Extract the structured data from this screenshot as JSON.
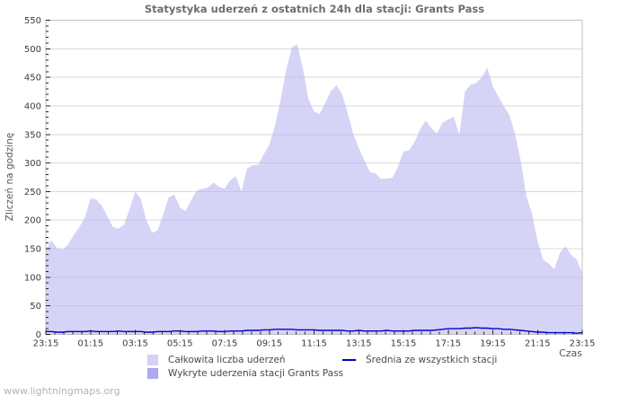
{
  "page": {
    "title": "Statystyka uderzeń z ostatnich 24h dla stacji: Grants Pass",
    "watermark": "www.lightningmaps.org"
  },
  "chart_data": {
    "type": "area",
    "title": "Statystyka uderzeń z ostatnich 24h dla stacji: Grants Pass",
    "xlabel": "Czas",
    "ylabel": "Zliczeń na godzinę",
    "xlim": [
      0,
      24
    ],
    "ylim": [
      0,
      550
    ],
    "grid": "horizontal-only",
    "legend_position": "bottom",
    "x_axis_note": "24 hours, from 23:15 through next-day 23:15, labels every 2 hours",
    "x_tick_labels": [
      "23:15",
      "01:15",
      "03:15",
      "05:15",
      "07:15",
      "09:15",
      "11:15",
      "13:15",
      "15:15",
      "17:15",
      "19:15",
      "21:15",
      "23:15"
    ],
    "y_ticks": [
      0,
      50,
      100,
      150,
      200,
      250,
      300,
      350,
      400,
      450,
      500,
      550
    ],
    "x_hours": [
      0,
      0.25,
      0.5,
      0.75,
      1,
      1.25,
      1.5,
      1.75,
      2,
      2.25,
      2.5,
      2.75,
      3,
      3.25,
      3.5,
      3.75,
      4,
      4.25,
      4.5,
      4.75,
      5,
      5.25,
      5.5,
      5.75,
      6,
      6.25,
      6.5,
      6.75,
      7,
      7.25,
      7.5,
      7.75,
      8,
      8.25,
      8.5,
      8.75,
      9,
      9.25,
      9.5,
      9.75,
      10,
      10.25,
      10.5,
      10.75,
      11,
      11.25,
      11.5,
      11.75,
      12,
      12.25,
      12.5,
      12.75,
      13,
      13.25,
      13.5,
      13.75,
      14,
      14.25,
      14.5,
      14.75,
      15,
      15.25,
      15.5,
      15.75,
      16,
      16.25,
      16.5,
      16.75,
      17,
      17.25,
      17.5,
      17.75,
      18,
      18.25,
      18.5,
      18.75,
      19,
      19.25,
      19.5,
      19.75,
      20,
      20.25,
      20.5,
      20.75,
      21,
      21.25,
      21.5,
      21.75,
      22,
      22.25,
      22.5,
      22.75,
      23,
      23.25,
      23.5,
      23.75,
      24
    ],
    "series": [
      {
        "name": "Całkowita liczba uderzeń",
        "type": "area",
        "color": "#bcb9f0",
        "values": [
          149,
          165,
          151,
          148,
          158,
          174,
          188,
          205,
          238,
          236,
          226,
          207,
          188,
          185,
          192,
          220,
          250,
          237,
          200,
          178,
          182,
          210,
          240,
          245,
          222,
          216,
          235,
          252,
          255,
          257,
          266,
          258,
          255,
          270,
          277,
          250,
          290,
          296,
          297,
          315,
          332,
          365,
          410,
          462,
          502,
          508,
          465,
          412,
          390,
          386,
          405,
          426,
          436,
          421,
          388,
          352,
          326,
          305,
          284,
          282,
          272,
          273,
          274,
          293,
          320,
          322,
          337,
          360,
          374,
          361,
          352,
          371,
          376,
          381,
          349,
          425,
          437,
          440,
          450,
          467,
          434,
          416,
          399,
          383,
          350,
          303,
          242,
          212,
          163,
          131,
          124,
          114,
          143,
          154,
          139,
          131,
          108
        ]
      },
      {
        "name": "Średnia ze wszystkich stacji",
        "type": "line",
        "color": "#0000cd",
        "values": [
          5,
          5,
          4,
          4,
          5,
          5,
          5,
          5,
          6,
          5,
          5,
          5,
          5,
          6,
          5,
          5,
          5,
          5,
          4,
          4,
          5,
          5,
          5,
          6,
          6,
          5,
          5,
          5,
          6,
          6,
          6,
          5,
          5,
          6,
          6,
          6,
          7,
          7,
          7,
          8,
          8,
          9,
          9,
          9,
          9,
          8,
          8,
          8,
          8,
          7,
          7,
          7,
          7,
          7,
          6,
          6,
          7,
          6,
          6,
          6,
          6,
          7,
          6,
          6,
          6,
          6,
          7,
          7,
          7,
          7,
          8,
          9,
          10,
          10,
          10,
          11,
          11,
          12,
          11,
          11,
          10,
          10,
          9,
          9,
          8,
          7,
          6,
          5,
          4,
          4,
          3,
          3,
          3,
          3,
          3,
          2,
          3
        ]
      },
      {
        "name": "Wykryte uderzenia stacji Grants Pass",
        "type": "area",
        "color": "#aaa7ef",
        "note": "series not visible above the zero baseline in this chart"
      }
    ],
    "legend": [
      {
        "label": "Całkowita liczba uderzeń",
        "swatch": "area-light"
      },
      {
        "label": "Średnia ze wszystkich stacji",
        "swatch": "line"
      },
      {
        "label": "Wykryte uderzenia stacji Grants Pass",
        "swatch": "area-dark"
      }
    ],
    "colors": {
      "grid": "#d8d8d8",
      "border": "#c0c0c0",
      "tick": "#222222",
      "axis_text": "#3a3a3a",
      "title_text": "#6e6e6e",
      "area_total": "#bcb9f0",
      "area_detected": "#aaa7ef",
      "avg_line": "#0000cd",
      "legend_swatch_light": "#d4d2f7",
      "legend_swatch_dark": "#acaaf0",
      "watermark_text": "#b3b3b3"
    }
  }
}
